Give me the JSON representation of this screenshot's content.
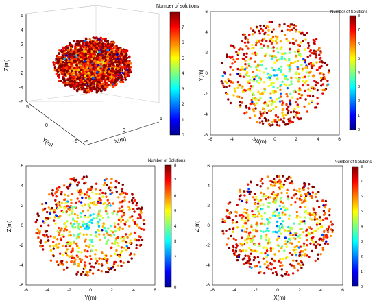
{
  "colormap": {
    "stops": [
      "#00008f",
      "#0000ff",
      "#007fff",
      "#00ffff",
      "#7fff7f",
      "#ffff00",
      "#ff7f00",
      "#ff0000",
      "#7f0000"
    ]
  },
  "chart_data": [
    {
      "type": "scatter3d",
      "title": "",
      "xlabel": "X(m)",
      "ylabel": "Y(m)",
      "zlabel": "Z(m)",
      "x_ticks": [
        -5,
        0,
        5
      ],
      "y_ticks": [
        -5,
        0,
        5
      ],
      "z_ticks": [
        -6,
        -4,
        -2,
        0,
        2,
        4,
        6
      ],
      "colorbar": {
        "label": "Number of solutions",
        "min": 0,
        "max": 8,
        "ticks": [
          0,
          1,
          2,
          3,
          4,
          5,
          6,
          7
        ]
      },
      "points": {
        "count": 2600,
        "radius_m": 5.0,
        "distribution": "dense sphere, values 0-8 (mostly 5-8)"
      }
    },
    {
      "type": "scatter",
      "title": "",
      "xlabel": "X(m)",
      "ylabel": "Y(m)",
      "xlim": [
        -6,
        6
      ],
      "ylim": [
        -6,
        6
      ],
      "x_ticks": [
        -6,
        -4,
        -2,
        0,
        2,
        4,
        6
      ],
      "y_ticks": [
        -6,
        -4,
        -2,
        0,
        2,
        4,
        6
      ],
      "colorbar": {
        "label": "Number of Solutions",
        "min": 0,
        "max": 8,
        "ticks": [
          0,
          1,
          2,
          3,
          4,
          5,
          6,
          7,
          8
        ]
      },
      "points": {
        "count": 620,
        "radius_m": 5.1,
        "distribution": "disk, values 0-8, lower in centre"
      }
    },
    {
      "type": "scatter",
      "title": "",
      "xlabel": "Y(m)",
      "ylabel": "Z(m)",
      "xlim": [
        -6,
        6
      ],
      "ylim": [
        -6,
        6
      ],
      "x_ticks": [
        -6,
        -4,
        -2,
        0,
        2,
        4,
        6
      ],
      "y_ticks": [
        -6,
        -4,
        -2,
        0,
        2,
        4,
        6
      ],
      "colorbar": {
        "label": "Number of Solutions",
        "min": 0,
        "max": 8,
        "ticks": [
          0,
          1,
          2,
          3,
          4,
          5,
          6,
          7,
          8
        ]
      },
      "points": {
        "count": 650,
        "radius_m": 5.1,
        "distribution": "disk, values 0-8, lower in centre"
      }
    },
    {
      "type": "scatter",
      "title": "",
      "xlabel": "X(m)",
      "ylabel": "Z(m)",
      "xlim": [
        -6,
        6
      ],
      "ylim": [
        -6,
        6
      ],
      "x_ticks": [
        -6,
        -4,
        -2,
        0,
        2,
        4,
        6
      ],
      "y_ticks": [
        -6,
        -4,
        -2,
        0,
        2,
        4,
        6
      ],
      "colorbar": {
        "label": "Number of Solutions",
        "min": 0,
        "max": 8,
        "ticks": [
          0,
          1,
          2,
          3,
          4,
          5,
          6,
          7,
          8
        ]
      },
      "points": {
        "count": 650,
        "radius_m": 5.1,
        "distribution": "disk, values 0-8, lower in centre"
      }
    }
  ]
}
